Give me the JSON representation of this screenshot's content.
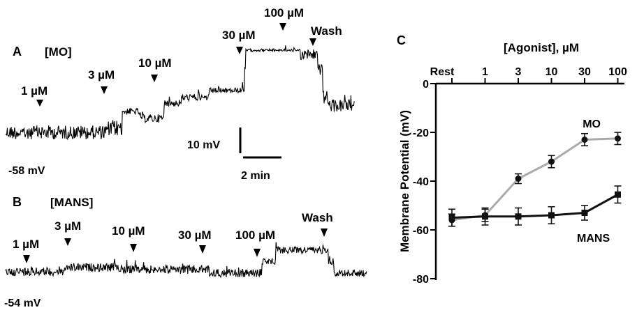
{
  "panels": {
    "A": {
      "letter": "A",
      "condition": "[MO]",
      "resting": "-58 mV",
      "annotations": [
        "1 µM",
        "3 µM",
        "10 µM",
        "30 µM",
        "100 µM",
        "Wash"
      ],
      "scale_v": "10 mV",
      "scale_t": "2 min"
    },
    "B": {
      "letter": "B",
      "condition": "[MANS]",
      "resting": "-54 mV",
      "annotations": [
        "1 µM",
        "3 µM",
        "10 µM",
        "30 µM",
        "100 µM",
        "Wash"
      ]
    },
    "C": {
      "letter": "C"
    }
  },
  "chart_data": {
    "type": "line",
    "title": "",
    "xlabel": "[Agonist], µM",
    "ylabel": "Membrane Potential (mV)",
    "categories": [
      "Rest",
      "1",
      "3",
      "10",
      "30",
      "100"
    ],
    "ylim": [
      -80,
      0
    ],
    "yticks": [
      0,
      -20,
      -40,
      -60,
      -80
    ],
    "series": [
      {
        "name": "MO",
        "color": "#aaaaaa",
        "marker": "circle",
        "values": [
          -56,
          -54,
          -39,
          -32,
          -23,
          -22.5
        ],
        "errors": [
          2.5,
          2.5,
          2,
          2.5,
          2.5,
          2.5
        ]
      },
      {
        "name": "MANS",
        "color": "#111111",
        "marker": "square",
        "values": [
          -55,
          -54.5,
          -54.5,
          -54,
          -53,
          -45.5
        ],
        "errors": [
          3.5,
          3.5,
          3.5,
          3.5,
          3,
          3.5
        ]
      }
    ]
  }
}
